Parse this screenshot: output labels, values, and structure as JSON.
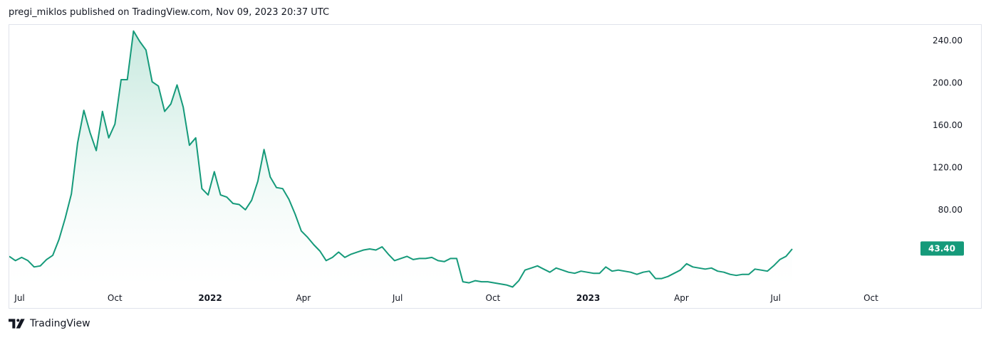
{
  "header": {
    "publisher_line": "pregi_miklos published on TradingView.com, Nov 09, 2023 20:37 UTC"
  },
  "footer": {
    "brand_label": "TradingView",
    "logo_icon": "tradingview-logo-icon"
  },
  "colors": {
    "line": "#159a7a",
    "area_top": "#bfe6da",
    "area_bottom": "#ffffff",
    "badge_bg": "#159a7a",
    "badge_text": "#ffffff",
    "border": "#e0e3eb"
  },
  "chart_data": {
    "type": "area",
    "title": "",
    "xlabel": "",
    "ylabel": "",
    "grid": false,
    "legend": "none",
    "ylim": [
      4,
      250
    ],
    "xlim": [
      "2021-06-21",
      "2023-11-13"
    ],
    "y_ticks": [
      "240.00",
      "200.00",
      "160.00",
      "120.00",
      "80.00"
    ],
    "y_tick_values": [
      240,
      200,
      160,
      120,
      80
    ],
    "x_ticks": [
      {
        "label": "Jul",
        "date": "2021-07-01",
        "bold": false
      },
      {
        "label": "Oct",
        "date": "2021-10-01",
        "bold": false
      },
      {
        "label": "2022",
        "date": "2022-01-01",
        "bold": true
      },
      {
        "label": "Apr",
        "date": "2022-04-01",
        "bold": false
      },
      {
        "label": "Jul",
        "date": "2022-07-01",
        "bold": false
      },
      {
        "label": "Oct",
        "date": "2022-10-01",
        "bold": false
      },
      {
        "label": "2023",
        "date": "2023-01-01",
        "bold": true
      },
      {
        "label": "Apr",
        "date": "2023-04-01",
        "bold": false
      },
      {
        "label": "Jul",
        "date": "2023-07-01",
        "bold": false
      },
      {
        "label": "Oct",
        "date": "2023-10-01",
        "bold": false
      }
    ],
    "last_value_label": "43.40",
    "last_value": 43.4,
    "series": [
      {
        "points": [
          [
            "2021-06-21",
            36
          ],
          [
            "2021-06-27",
            32
          ],
          [
            "2021-07-03",
            35
          ],
          [
            "2021-07-09",
            32
          ],
          [
            "2021-07-15",
            26
          ],
          [
            "2021-07-21",
            27
          ],
          [
            "2021-07-27",
            33
          ],
          [
            "2021-08-02",
            37
          ],
          [
            "2021-08-08",
            52
          ],
          [
            "2021-08-14",
            72
          ],
          [
            "2021-08-20",
            95
          ],
          [
            "2021-08-26",
            143
          ],
          [
            "2021-09-01",
            174
          ],
          [
            "2021-09-07",
            153
          ],
          [
            "2021-09-13",
            136
          ],
          [
            "2021-09-19",
            173
          ],
          [
            "2021-09-25",
            148
          ],
          [
            "2021-10-01",
            161
          ],
          [
            "2021-10-07",
            203
          ],
          [
            "2021-10-13",
            203
          ],
          [
            "2021-10-19",
            249
          ],
          [
            "2021-10-25",
            239
          ],
          [
            "2021-10-31",
            231
          ],
          [
            "2021-11-06",
            201
          ],
          [
            "2021-11-12",
            197
          ],
          [
            "2021-11-18",
            173
          ],
          [
            "2021-11-24",
            180
          ],
          [
            "2021-11-30",
            198
          ],
          [
            "2021-12-06",
            177
          ],
          [
            "2021-12-12",
            141
          ],
          [
            "2021-12-18",
            148
          ],
          [
            "2021-12-24",
            100
          ],
          [
            "2021-12-30",
            94
          ],
          [
            "2022-01-05",
            116
          ],
          [
            "2022-01-11",
            94
          ],
          [
            "2022-01-17",
            92
          ],
          [
            "2022-01-23",
            86
          ],
          [
            "2022-01-29",
            85
          ],
          [
            "2022-02-04",
            80
          ],
          [
            "2022-02-10",
            89
          ],
          [
            "2022-02-16",
            107
          ],
          [
            "2022-02-22",
            137
          ],
          [
            "2022-02-28",
            111
          ],
          [
            "2022-03-06",
            101
          ],
          [
            "2022-03-12",
            100
          ],
          [
            "2022-03-18",
            90
          ],
          [
            "2022-03-24",
            76
          ],
          [
            "2022-03-30",
            60
          ],
          [
            "2022-04-05",
            54
          ],
          [
            "2022-04-11",
            47
          ],
          [
            "2022-04-17",
            41
          ],
          [
            "2022-04-23",
            32
          ],
          [
            "2022-04-29",
            35
          ],
          [
            "2022-05-05",
            40
          ],
          [
            "2022-05-11",
            35
          ],
          [
            "2022-05-17",
            38
          ],
          [
            "2022-05-23",
            40
          ],
          [
            "2022-05-29",
            42
          ],
          [
            "2022-06-04",
            43
          ],
          [
            "2022-06-10",
            42
          ],
          [
            "2022-06-16",
            45
          ],
          [
            "2022-06-22",
            38
          ],
          [
            "2022-06-28",
            32
          ],
          [
            "2022-07-04",
            34
          ],
          [
            "2022-07-10",
            36
          ],
          [
            "2022-07-16",
            33
          ],
          [
            "2022-07-22",
            34
          ],
          [
            "2022-07-28",
            34
          ],
          [
            "2022-08-03",
            35
          ],
          [
            "2022-08-09",
            32
          ],
          [
            "2022-08-15",
            31
          ],
          [
            "2022-08-21",
            34
          ],
          [
            "2022-08-27",
            34
          ],
          [
            "2022-09-02",
            12
          ],
          [
            "2022-09-08",
            11
          ],
          [
            "2022-09-14",
            13
          ],
          [
            "2022-09-20",
            12
          ],
          [
            "2022-09-26",
            12
          ],
          [
            "2022-10-02",
            11
          ],
          [
            "2022-10-08",
            10
          ],
          [
            "2022-10-14",
            9
          ],
          [
            "2022-10-20",
            7
          ],
          [
            "2022-10-26",
            13
          ],
          [
            "2022-11-01",
            23
          ],
          [
            "2022-11-07",
            25
          ],
          [
            "2022-11-13",
            27
          ],
          [
            "2022-11-19",
            24
          ],
          [
            "2022-11-25",
            21
          ],
          [
            "2022-12-01",
            25
          ],
          [
            "2022-12-07",
            23
          ],
          [
            "2022-12-13",
            21
          ],
          [
            "2022-12-19",
            20
          ],
          [
            "2022-12-25",
            22
          ],
          [
            "2022-12-31",
            21
          ],
          [
            "2023-01-06",
            20
          ],
          [
            "2023-01-12",
            20
          ],
          [
            "2023-01-18",
            26
          ],
          [
            "2023-01-24",
            22
          ],
          [
            "2023-01-30",
            23
          ],
          [
            "2023-02-05",
            22
          ],
          [
            "2023-02-11",
            21
          ],
          [
            "2023-02-17",
            19
          ],
          [
            "2023-02-23",
            21
          ],
          [
            "2023-03-01",
            22
          ],
          [
            "2023-03-07",
            15
          ],
          [
            "2023-03-13",
            15
          ],
          [
            "2023-03-19",
            17
          ],
          [
            "2023-03-25",
            20
          ],
          [
            "2023-03-31",
            23
          ],
          [
            "2023-04-06",
            29
          ],
          [
            "2023-04-12",
            26
          ],
          [
            "2023-04-18",
            25
          ],
          [
            "2023-04-24",
            24
          ],
          [
            "2023-04-30",
            25
          ],
          [
            "2023-05-06",
            22
          ],
          [
            "2023-05-12",
            21
          ],
          [
            "2023-05-18",
            19
          ],
          [
            "2023-05-24",
            18
          ],
          [
            "2023-05-30",
            19
          ],
          [
            "2023-06-05",
            19
          ],
          [
            "2023-06-11",
            24
          ],
          [
            "2023-06-17",
            23
          ],
          [
            "2023-06-23",
            22
          ],
          [
            "2023-06-29",
            27
          ],
          [
            "2023-07-05",
            33
          ],
          [
            "2023-07-11",
            36
          ],
          [
            "2023-07-17",
            43
          ]
        ]
      }
    ]
  }
}
